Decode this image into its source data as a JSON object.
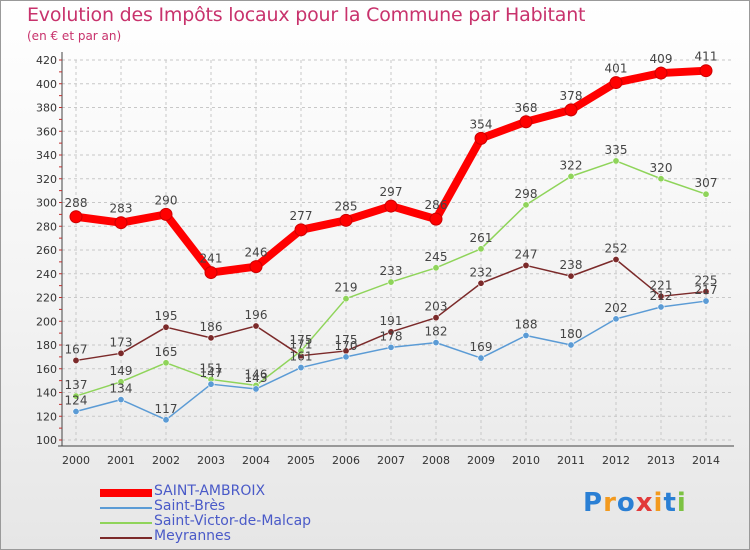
{
  "header": {
    "title": "Evolution des Impôts locaux pour la Commune par Habitant",
    "subtitle": "(en € et par an)"
  },
  "logo": {
    "text": "Proxiti"
  },
  "chart_data": {
    "type": "line",
    "title": "Evolution des Impôts locaux pour la Commune par Habitant",
    "subtitle": "(en € et par an)",
    "x": [
      2000,
      2001,
      2002,
      2003,
      2004,
      2005,
      2006,
      2007,
      2008,
      2009,
      2010,
      2011,
      2012,
      2013,
      2014
    ],
    "ylim": [
      100,
      420
    ],
    "yticks": [
      100,
      120,
      140,
      160,
      180,
      200,
      220,
      240,
      260,
      280,
      300,
      320,
      340,
      360,
      380,
      400,
      420
    ],
    "grid": true,
    "legend_position": "bottom-left",
    "series": [
      {
        "name": "SAINT-AMBROIX",
        "color": "#ff0000",
        "values": [
          288,
          283,
          290,
          241,
          246,
          277,
          285,
          297,
          286,
          354,
          368,
          378,
          401,
          409,
          411
        ]
      },
      {
        "name": "Saint-Brès",
        "color": "#5b9bd5",
        "values": [
          124,
          134,
          117,
          147,
          143,
          161,
          170,
          178,
          182,
          169,
          188,
          180,
          202,
          212,
          217
        ]
      },
      {
        "name": "Saint-Victor-de-Malcap",
        "color": "#8fd45a",
        "values": [
          137,
          149,
          165,
          151,
          146,
          175,
          219,
          233,
          245,
          261,
          298,
          322,
          335,
          320,
          307
        ]
      },
      {
        "name": "Meyrannes",
        "color": "#7b2a2a",
        "values": [
          167,
          173,
          195,
          186,
          196,
          171,
          175,
          191,
          203,
          232,
          247,
          238,
          252,
          221,
          225
        ]
      }
    ]
  }
}
